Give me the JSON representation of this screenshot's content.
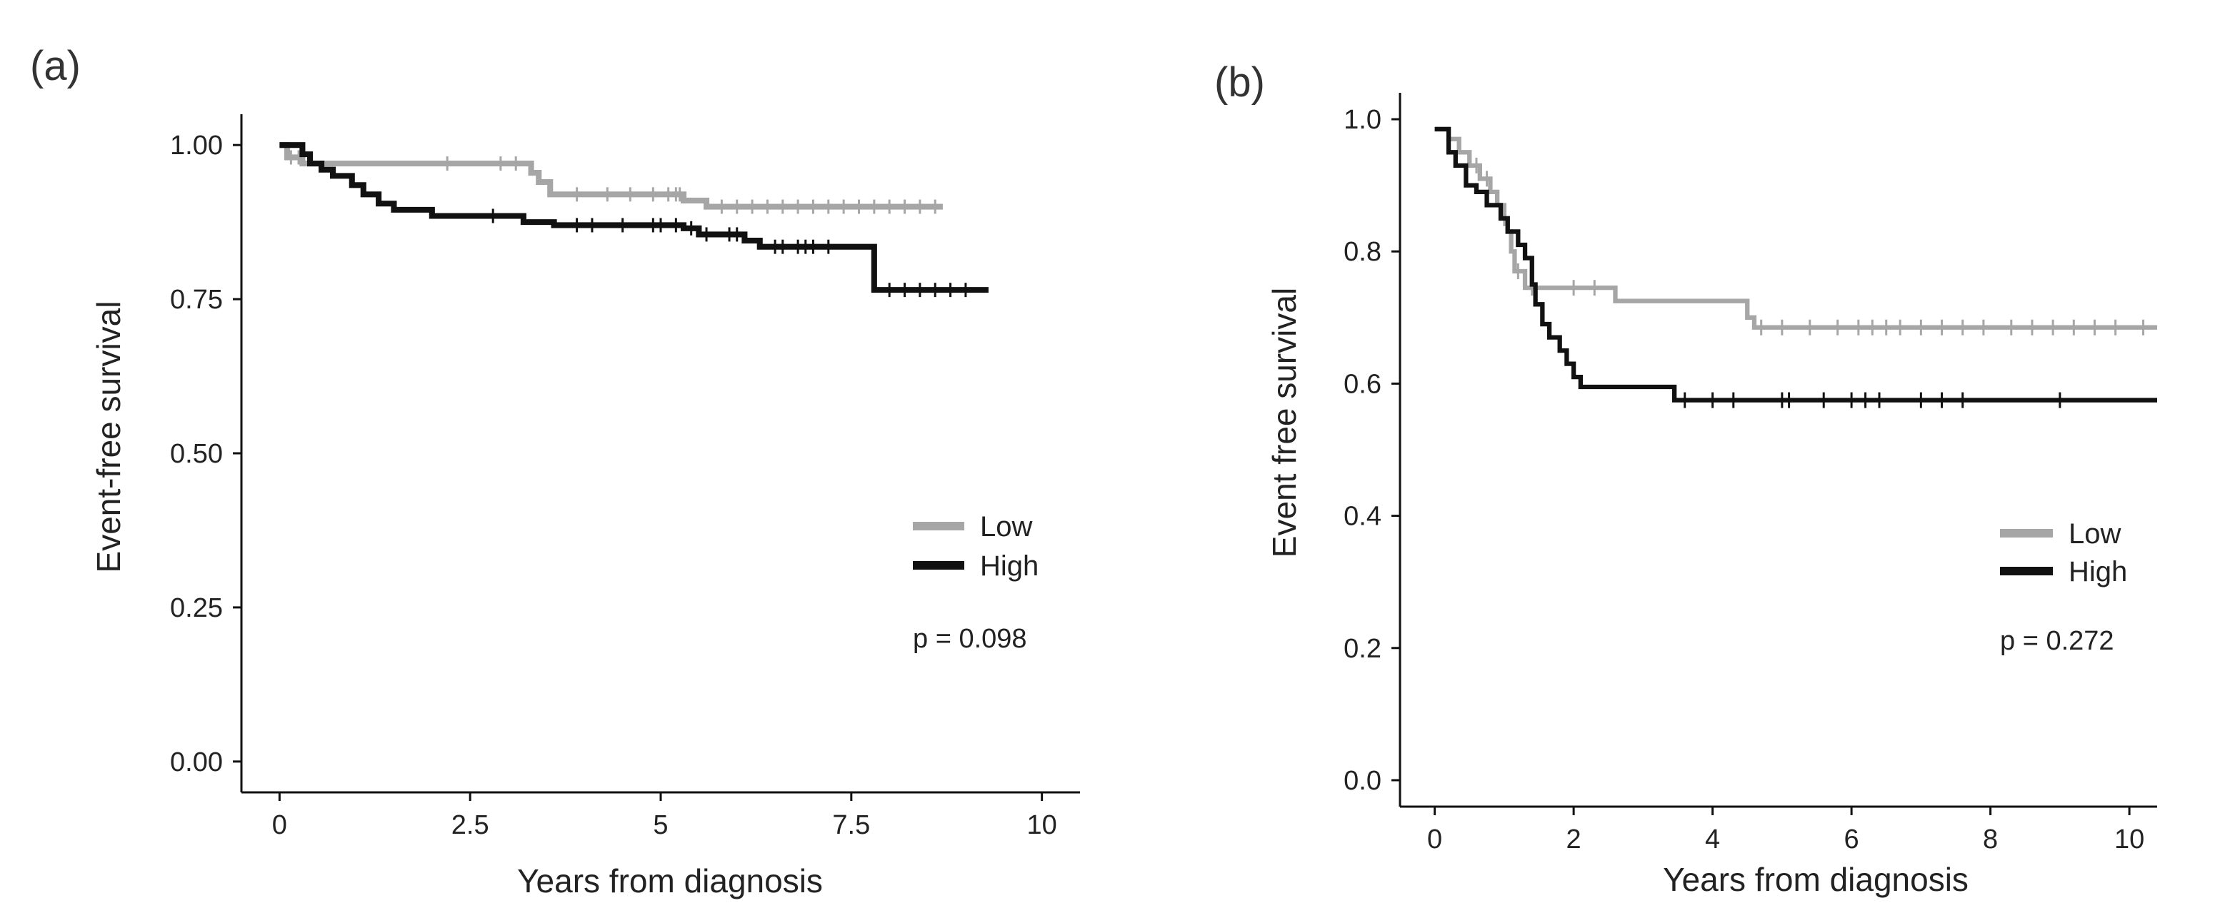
{
  "chart_data": [
    {
      "type": "line",
      "panel_label": "(a)",
      "title": "",
      "xlabel": "Years from diagnosis",
      "ylabel": "Event-free survival",
      "xlim": [
        -0.5,
        10.5
      ],
      "ylim": [
        -0.05,
        1.05
      ],
      "xticks": [
        0,
        2.5,
        5,
        7.5,
        10
      ],
      "xtick_labels": [
        "0",
        "2.5",
        "5",
        "7.5",
        "10"
      ],
      "yticks": [
        0,
        0.25,
        0.5,
        0.75,
        1.0
      ],
      "ytick_labels": [
        "0.00",
        "0.25",
        "0.50",
        "0.75",
        "1.00"
      ],
      "legend_position": "right-middle",
      "annotation": "p = 0.098",
      "series": [
        {
          "name": "Low",
          "color": "#a6a6a6",
          "steps": [
            [
              0,
              1.0
            ],
            [
              0.1,
              0.98
            ],
            [
              0.3,
              0.97
            ],
            [
              3.3,
              0.955
            ],
            [
              3.4,
              0.94
            ],
            [
              3.55,
              0.92
            ],
            [
              5.3,
              0.91
            ],
            [
              5.6,
              0.9
            ],
            [
              8.7,
              0.9
            ]
          ],
          "censor_x": [
            0.15,
            0.25,
            2.2,
            2.9,
            3.1,
            3.9,
            4.3,
            4.6,
            4.9,
            5.1,
            5.2,
            5.25,
            5.8,
            6.0,
            6.2,
            6.4,
            6.6,
            6.8,
            7.0,
            7.2,
            7.4,
            7.6,
            7.8,
            8.0,
            8.2,
            8.4,
            8.6
          ]
        },
        {
          "name": "High",
          "color": "#111111",
          "steps": [
            [
              0,
              1.0
            ],
            [
              0.3,
              0.985
            ],
            [
              0.4,
              0.97
            ],
            [
              0.55,
              0.96
            ],
            [
              0.7,
              0.95
            ],
            [
              0.95,
              0.935
            ],
            [
              1.1,
              0.92
            ],
            [
              1.3,
              0.905
            ],
            [
              1.5,
              0.895
            ],
            [
              2.0,
              0.885
            ],
            [
              3.2,
              0.875
            ],
            [
              3.6,
              0.87
            ],
            [
              5.3,
              0.865
            ],
            [
              5.5,
              0.855
            ],
            [
              6.1,
              0.845
            ],
            [
              6.3,
              0.835
            ],
            [
              7.8,
              0.765
            ],
            [
              9.3,
              0.765
            ]
          ],
          "censor_x": [
            2.8,
            3.9,
            4.1,
            4.5,
            4.9,
            5.0,
            5.2,
            5.4,
            5.6,
            5.9,
            6.0,
            6.5,
            6.6,
            6.8,
            6.9,
            7.0,
            7.2,
            8.0,
            8.2,
            8.4,
            8.6,
            8.8,
            9.0
          ]
        }
      ]
    },
    {
      "type": "line",
      "panel_label": "(b)",
      "title": "",
      "xlabel": "Years from diagnosis",
      "ylabel": "Event free survival",
      "xlim": [
        -0.5,
        10.4
      ],
      "ylim": [
        -0.04,
        1.04
      ],
      "xticks": [
        0,
        2,
        4,
        6,
        8,
        10
      ],
      "xtick_labels": [
        "0",
        "2",
        "4",
        "6",
        "8",
        "10"
      ],
      "yticks": [
        0,
        0.2,
        0.4,
        0.6,
        0.8,
        1.0
      ],
      "ytick_labels": [
        "0.0",
        "0.2",
        "0.4",
        "0.6",
        "0.8",
        "1.0"
      ],
      "legend_position": "right-middle",
      "annotation": "p = 0.272",
      "series": [
        {
          "name": "Low",
          "color": "#a6a6a6",
          "steps": [
            [
              0,
              0.985
            ],
            [
              0.2,
              0.97
            ],
            [
              0.35,
              0.95
            ],
            [
              0.5,
              0.93
            ],
            [
              0.65,
              0.91
            ],
            [
              0.8,
              0.89
            ],
            [
              0.9,
              0.87
            ],
            [
              1.0,
              0.85
            ],
            [
              1.05,
              0.83
            ],
            [
              1.1,
              0.8
            ],
            [
              1.15,
              0.77
            ],
            [
              1.3,
              0.745
            ],
            [
              2.6,
              0.725
            ],
            [
              4.5,
              0.7
            ],
            [
              4.6,
              0.685
            ],
            [
              10.4,
              0.685
            ]
          ],
          "censor_x": [
            0.6,
            0.75,
            1.0,
            1.2,
            1.4,
            2.0,
            2.3,
            4.7,
            5.0,
            5.4,
            5.8,
            6.1,
            6.3,
            6.5,
            6.7,
            7.0,
            7.3,
            7.6,
            7.9,
            8.3,
            8.6,
            8.9,
            9.2,
            9.5,
            9.8,
            10.2
          ]
        },
        {
          "name": "High",
          "color": "#111111",
          "steps": [
            [
              0,
              0.985
            ],
            [
              0.2,
              0.95
            ],
            [
              0.3,
              0.93
            ],
            [
              0.45,
              0.9
            ],
            [
              0.6,
              0.89
            ],
            [
              0.75,
              0.87
            ],
            [
              0.95,
              0.85
            ],
            [
              1.05,
              0.83
            ],
            [
              1.2,
              0.81
            ],
            [
              1.3,
              0.79
            ],
            [
              1.4,
              0.75
            ],
            [
              1.45,
              0.72
            ],
            [
              1.55,
              0.69
            ],
            [
              1.65,
              0.67
            ],
            [
              1.8,
              0.65
            ],
            [
              1.9,
              0.63
            ],
            [
              2.0,
              0.61
            ],
            [
              2.1,
              0.595
            ],
            [
              3.45,
              0.575
            ],
            [
              10.4,
              0.575
            ]
          ],
          "censor_x": [
            3.6,
            4.0,
            4.3,
            5.0,
            5.1,
            5.6,
            6.0,
            6.2,
            6.4,
            7.0,
            7.3,
            7.6,
            9.0
          ]
        }
      ]
    }
  ]
}
